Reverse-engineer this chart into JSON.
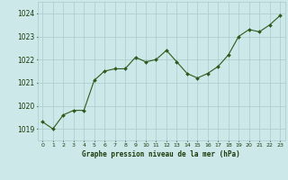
{
  "hours": [
    0,
    1,
    2,
    3,
    4,
    5,
    6,
    7,
    8,
    9,
    10,
    11,
    12,
    13,
    14,
    15,
    16,
    17,
    18,
    19,
    20,
    21,
    22,
    23
  ],
  "pressure": [
    1019.3,
    1019.0,
    1019.6,
    1019.8,
    1019.8,
    1021.1,
    1021.5,
    1021.6,
    1021.6,
    1022.1,
    1021.9,
    1022.0,
    1022.4,
    1021.9,
    1021.4,
    1021.2,
    1021.4,
    1021.7,
    1022.2,
    1023.0,
    1023.3,
    1023.2,
    1023.5,
    1023.9
  ],
  "ylim": [
    1018.5,
    1024.5
  ],
  "yticks": [
    1019,
    1020,
    1021,
    1022,
    1023,
    1024
  ],
  "xticks": [
    0,
    1,
    2,
    3,
    4,
    5,
    6,
    7,
    8,
    9,
    10,
    11,
    12,
    13,
    14,
    15,
    16,
    17,
    18,
    19,
    20,
    21,
    22,
    23
  ],
  "line_color": "#2d5a1b",
  "marker_color": "#2d5a1b",
  "bg_color": "#cce8e8",
  "grid_color": "#aacccc",
  "xlabel": "Graphe pression niveau de la mer (hPa)",
  "xlabel_color": "#1a3a0a",
  "tick_label_color": "#1a3a0a",
  "figsize": [
    3.2,
    2.0
  ],
  "dpi": 100
}
